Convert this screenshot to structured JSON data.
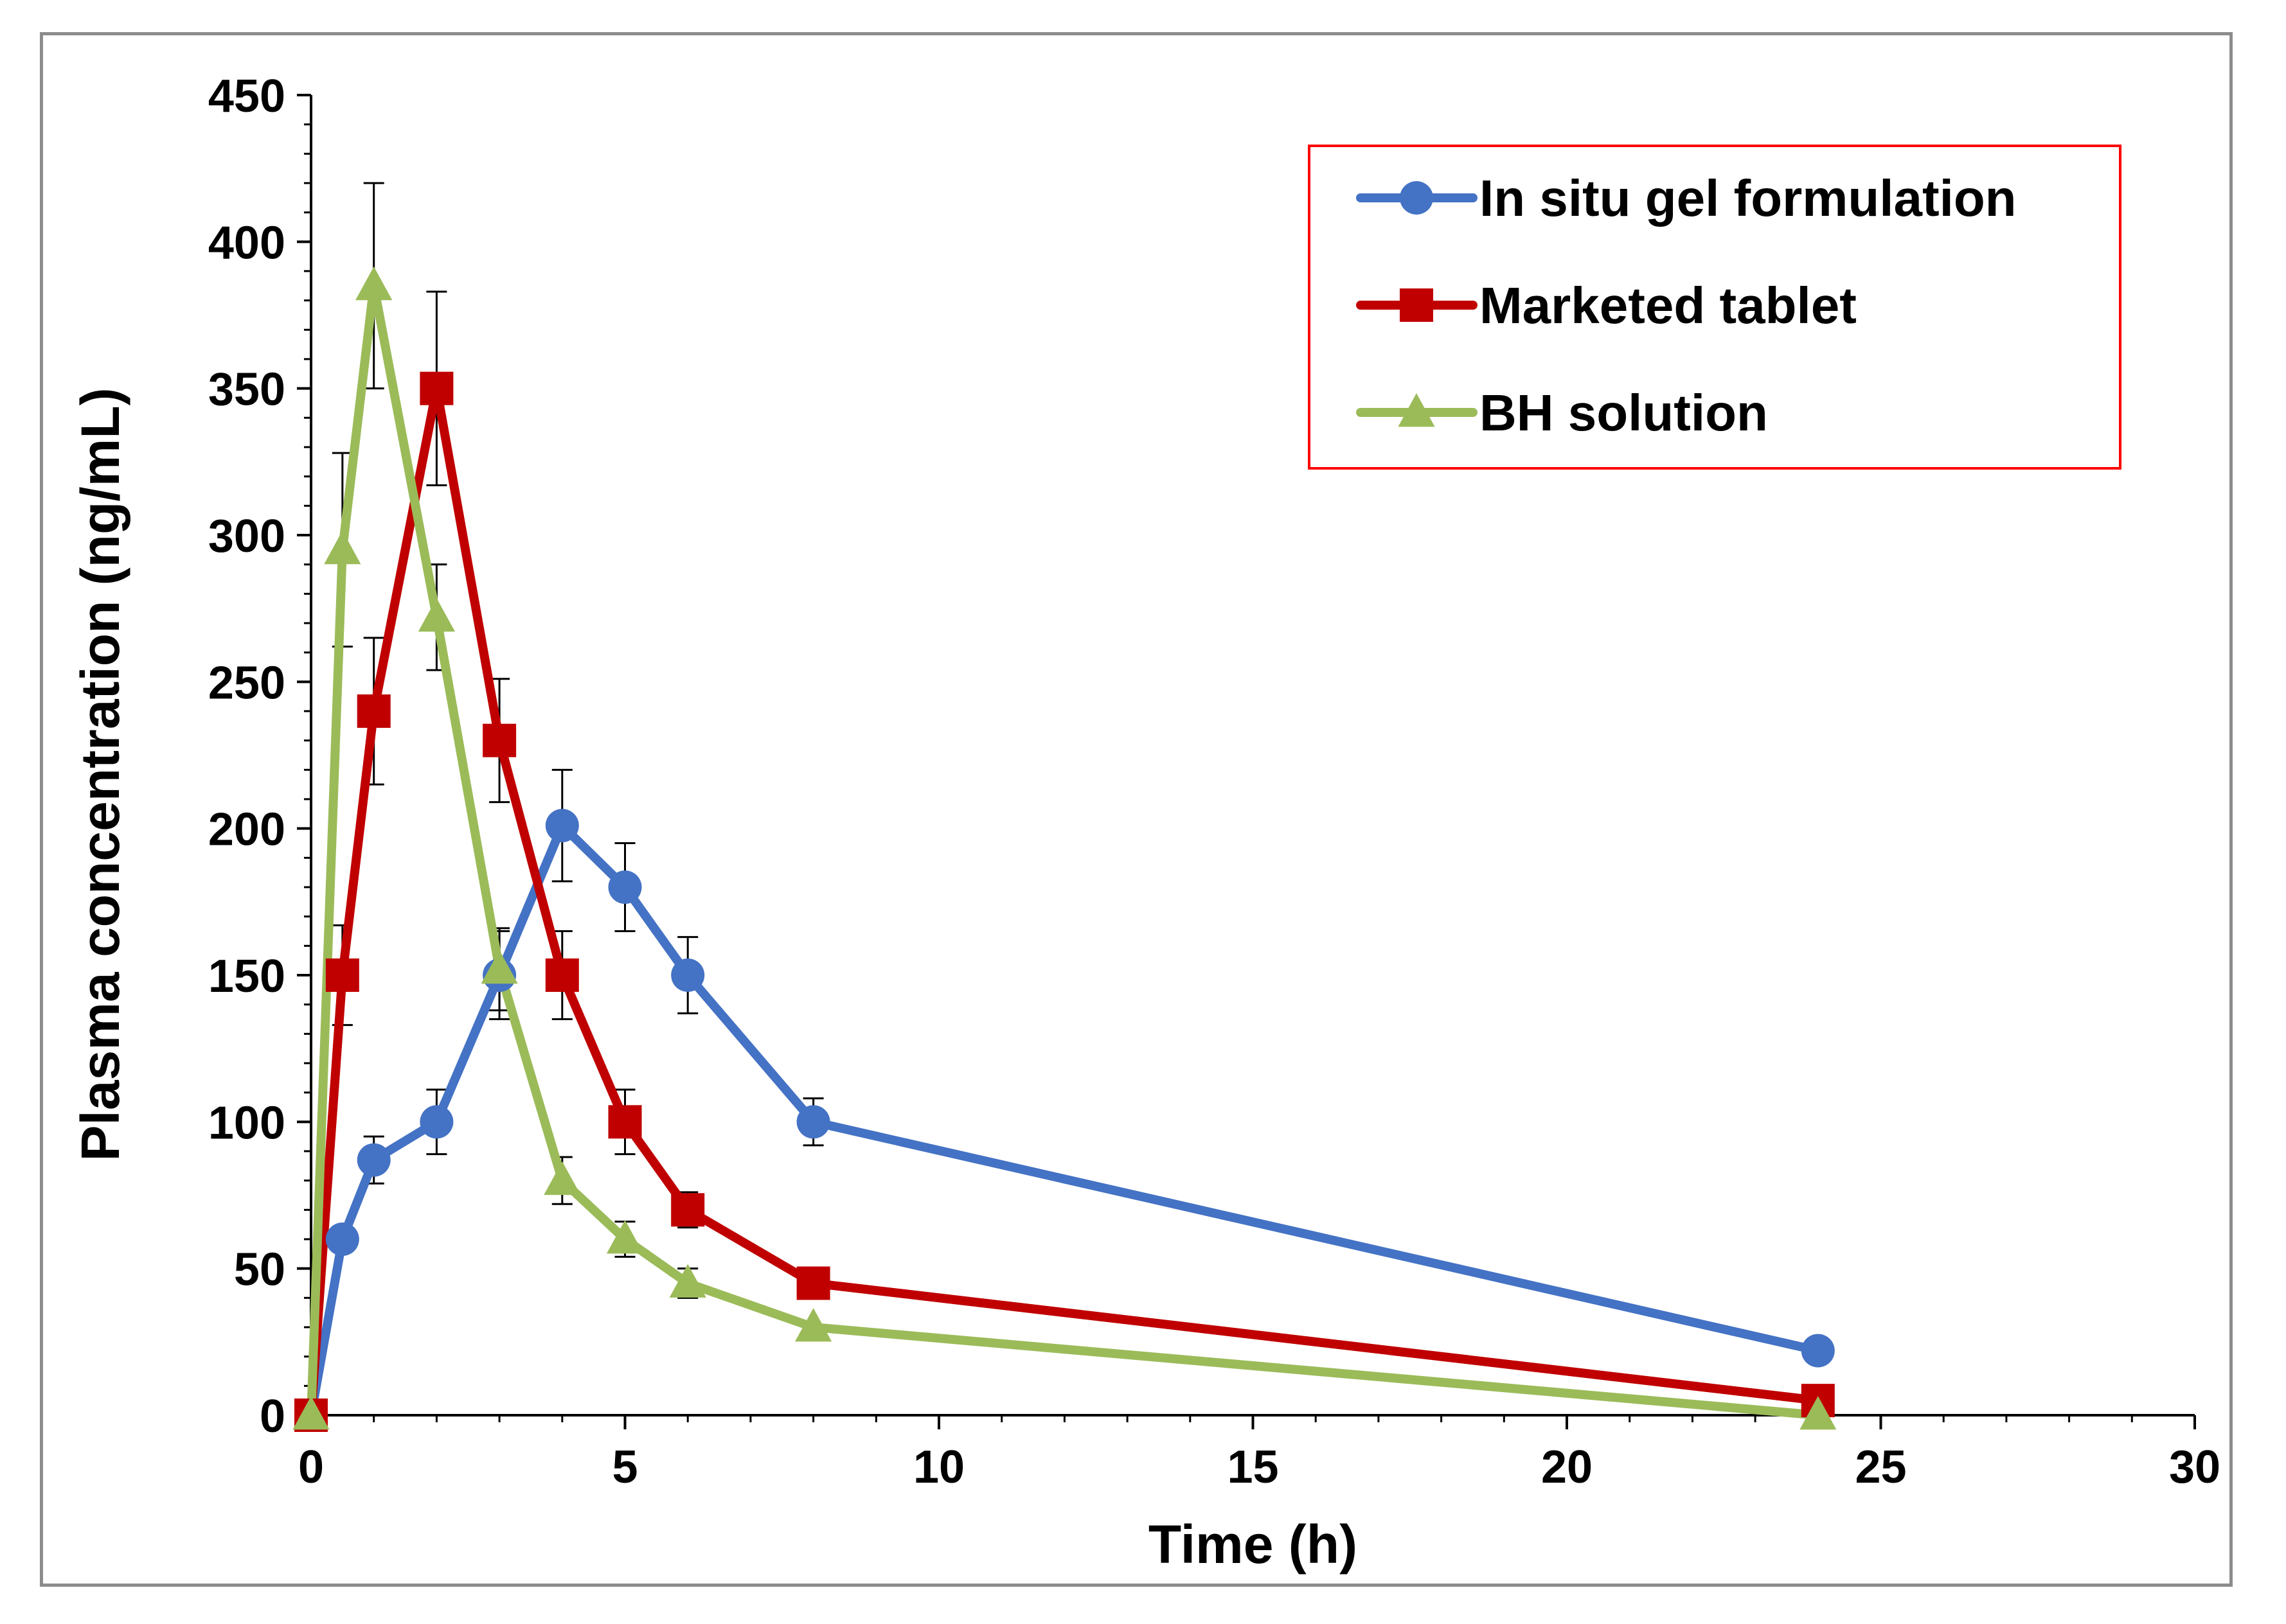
{
  "chart_data": {
    "type": "line",
    "xlabel": "Time (h)",
    "ylabel": "Plasma concentration (ng/mL)",
    "xlim": [
      0,
      30
    ],
    "ylim": [
      0,
      450
    ],
    "xticks": [
      0,
      5,
      10,
      15,
      20,
      25,
      30
    ],
    "yticks": [
      0,
      50,
      100,
      150,
      200,
      250,
      300,
      350,
      400,
      450
    ],
    "grid": false,
    "legend_position": "top-right",
    "series": [
      {
        "name": "In situ gel formulation",
        "color": "#4472c4",
        "marker": "circle",
        "x": [
          0,
          0.5,
          1,
          2,
          3,
          4,
          5,
          6,
          8,
          24
        ],
        "y": [
          0,
          60,
          87,
          100,
          150,
          201,
          180,
          150,
          100,
          22
        ],
        "error": [
          0,
          0,
          8,
          11,
          15,
          19,
          15,
          13,
          8,
          0
        ]
      },
      {
        "name": "Marketed tablet",
        "color": "#c00000",
        "marker": "square",
        "x": [
          0,
          0.5,
          1,
          2,
          3,
          4,
          5,
          6,
          8,
          24
        ],
        "y": [
          0,
          150,
          240,
          350,
          230,
          150,
          100,
          70,
          45,
          5
        ],
        "error": [
          0,
          17,
          25,
          33,
          21,
          15,
          11,
          6,
          0,
          0
        ]
      },
      {
        "name": "BH solution",
        "color": "#9bbb59",
        "marker": "triangle",
        "x": [
          0,
          0.5,
          1,
          2,
          3,
          4,
          5,
          6,
          8,
          24
        ],
        "y": [
          0,
          295,
          385,
          272,
          152,
          80,
          60,
          45,
          30,
          0
        ],
        "error": [
          0,
          33,
          35,
          18,
          14,
          8,
          6,
          5,
          0,
          0
        ]
      }
    ]
  }
}
